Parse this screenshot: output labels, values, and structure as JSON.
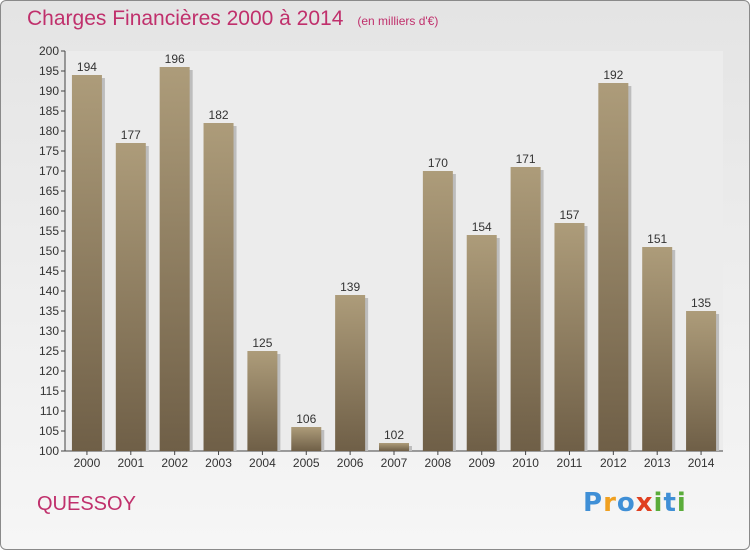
{
  "header": {
    "title": "Charges Financières 2000 à 2014",
    "subtitle": "(en milliers d'€)"
  },
  "footer": {
    "place": "QUESSOY",
    "logo_letters": [
      {
        "char": "P",
        "color": "#3f8fd6"
      },
      {
        "char": "r",
        "color": "#f0a020"
      },
      {
        "char": "o",
        "color": "#3f8fd6"
      },
      {
        "char": "x",
        "color": "#e04020"
      },
      {
        "char": "i",
        "color": "#5aac3a"
      },
      {
        "char": "t",
        "color": "#3f8fd6"
      },
      {
        "char": "i",
        "color": "#5aac3a"
      }
    ]
  },
  "colors": {
    "bar_top": "#ad9c7a",
    "bar_bottom": "#6f5f47",
    "accent": "#c0306c"
  },
  "chart_data": {
    "type": "bar",
    "title": "Charges Financières 2000 à 2014",
    "subtitle": "(en milliers d'€)",
    "xlabel": "",
    "ylabel": "",
    "categories": [
      "2000",
      "2001",
      "2002",
      "2003",
      "2004",
      "2005",
      "2006",
      "2007",
      "2008",
      "2009",
      "2010",
      "2011",
      "2012",
      "2013",
      "2014"
    ],
    "values": [
      194,
      177,
      196,
      182,
      125,
      106,
      139,
      102,
      170,
      154,
      171,
      157,
      192,
      151,
      135
    ],
    "ylim": [
      100,
      200
    ],
    "ytick_step": 5,
    "grid": false,
    "data_labels": true
  }
}
